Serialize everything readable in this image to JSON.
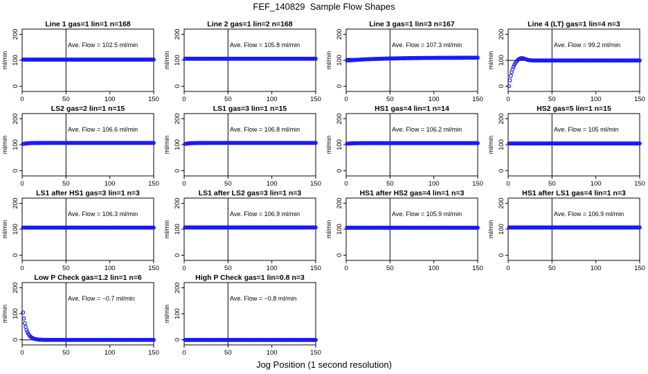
{
  "title": "FEF_140829  Sample Flow Shapes",
  "xlabel": "Jog Position (1 second resolution)",
  "chart_data": [
    {
      "type": "scatter",
      "title": "Line 1 gas=1 lin=1 n=168",
      "ylabel": "ml/min",
      "annotation": "Ave. Flow = 102.5  ml/min",
      "mean": 102.5,
      "xlim": [
        0,
        150
      ],
      "ylim": [
        -20,
        220
      ],
      "xticks": [
        0,
        50,
        100,
        150
      ],
      "yticks": [
        0,
        100,
        200
      ],
      "vline": 50,
      "point_color": "#1a1aff",
      "shape": {
        "start": 102.5,
        "end": 102.5,
        "tau": 1
      },
      "series": [
        {
          "x": [
            0,
            150
          ],
          "y": [
            102.5,
            102.5
          ]
        }
      ]
    },
    {
      "type": "scatter",
      "title": "Line 2 gas=1 lin=2 n=168",
      "ylabel": "ml/min",
      "annotation": "Ave. Flow = 105.8  ml/min",
      "mean": 105.8,
      "xlim": [
        0,
        150
      ],
      "ylim": [
        -20,
        220
      ],
      "xticks": [
        0,
        50,
        100,
        150
      ],
      "yticks": [
        0,
        100,
        200
      ],
      "vline": 50,
      "point_color": "#1a1aff",
      "shape": {
        "start": 105.8,
        "end": 105.8,
        "tau": 1
      },
      "series": [
        {
          "x": [
            0,
            150
          ],
          "y": [
            105.8,
            105.8
          ]
        }
      ]
    },
    {
      "type": "scatter",
      "title": "Line 3 gas=1 lin=3 n=167",
      "ylabel": "ml/min",
      "annotation": "Ave. Flow = 107.3  ml/min",
      "mean": 107.3,
      "xlim": [
        0,
        150
      ],
      "ylim": [
        -20,
        220
      ],
      "xticks": [
        0,
        50,
        100,
        150
      ],
      "yticks": [
        0,
        100,
        200
      ],
      "vline": 50,
      "point_color": "#1a1aff",
      "shape": {
        "start": 99,
        "end": 110,
        "tau": 40
      },
      "series": [
        {
          "x": [
            0,
            150
          ],
          "y": [
            99,
            110
          ]
        }
      ]
    },
    {
      "type": "scatter",
      "title": "Line 4 (LT) gas=1 lin=4 n=3",
      "ylabel": "ml/min",
      "annotation": "Ave. Flow = 99.2  ml/min",
      "mean": 99.2,
      "xlim": [
        0,
        150
      ],
      "ylim": [
        -20,
        220
      ],
      "xticks": [
        0,
        50,
        100,
        150
      ],
      "yticks": [
        0,
        100,
        200
      ],
      "vline": 50,
      "point_color": "#1a1aff",
      "shape": {
        "start": 0,
        "end": 99.2,
        "tau": 4,
        "overshoot": 12
      },
      "series": [
        {
          "x": [
            0,
            150
          ],
          "y": [
            0,
            99
          ]
        }
      ]
    },
    {
      "type": "scatter",
      "title": "LS2 gas=2 lin=1 n=15",
      "ylabel": "ml/min",
      "annotation": "Ave. Flow = 106.6  ml/min",
      "mean": 106.6,
      "xlim": [
        0,
        150
      ],
      "ylim": [
        -20,
        220
      ],
      "xticks": [
        0,
        50,
        100,
        150
      ],
      "yticks": [
        0,
        100,
        200
      ],
      "vline": 50,
      "point_color": "#1a1aff",
      "shape": {
        "start": 103,
        "end": 107,
        "tau": 5
      },
      "series": [
        {
          "x": [
            0,
            150
          ],
          "y": [
            103,
            107
          ]
        }
      ]
    },
    {
      "type": "scatter",
      "title": "LS1 gas=3 lin=1 n=15",
      "ylabel": "ml/min",
      "annotation": "Ave. Flow = 106.8  ml/min",
      "mean": 106.8,
      "xlim": [
        0,
        150
      ],
      "ylim": [
        -20,
        220
      ],
      "xticks": [
        0,
        50,
        100,
        150
      ],
      "yticks": [
        0,
        100,
        200
      ],
      "vline": 50,
      "point_color": "#1a1aff",
      "shape": {
        "start": 103,
        "end": 107,
        "tau": 5
      },
      "series": [
        {
          "x": [
            0,
            150
          ],
          "y": [
            103,
            107
          ]
        }
      ]
    },
    {
      "type": "scatter",
      "title": "HS1 gas=4 lin=1 n=14",
      "ylabel": "ml/min",
      "annotation": "Ave. Flow = 106.2  ml/min",
      "mean": 106.2,
      "xlim": [
        0,
        150
      ],
      "ylim": [
        -20,
        220
      ],
      "xticks": [
        0,
        50,
        100,
        150
      ],
      "yticks": [
        0,
        100,
        200
      ],
      "vline": 50,
      "point_color": "#1a1aff",
      "shape": {
        "start": 104,
        "end": 106.2,
        "tau": 5
      },
      "series": [
        {
          "x": [
            0,
            150
          ],
          "y": [
            104,
            106.2
          ]
        }
      ]
    },
    {
      "type": "scatter",
      "title": "HS2 gas=5 lin=1 n=15",
      "ylabel": "ml/min",
      "annotation": "Ave. Flow = 105  ml/min",
      "mean": 105,
      "xlim": [
        0,
        150
      ],
      "ylim": [
        -20,
        220
      ],
      "xticks": [
        0,
        50,
        100,
        150
      ],
      "yticks": [
        0,
        100,
        200
      ],
      "vline": 50,
      "point_color": "#1a1aff",
      "shape": {
        "start": 105,
        "end": 105,
        "tau": 1
      },
      "series": [
        {
          "x": [
            0,
            150
          ],
          "y": [
            105,
            105
          ]
        }
      ]
    },
    {
      "type": "scatter",
      "title": "LS1 after HS1 gas=3 lin=1 n=3",
      "ylabel": "ml/min",
      "annotation": "Ave. Flow = 106.3  ml/min",
      "mean": 106.3,
      "xlim": [
        0,
        150
      ],
      "ylim": [
        -20,
        220
      ],
      "xticks": [
        0,
        50,
        100,
        150
      ],
      "yticks": [
        0,
        100,
        200
      ],
      "vline": 50,
      "point_color": "#1a1aff",
      "shape": {
        "start": 106.3,
        "end": 106.3,
        "tau": 1
      },
      "series": [
        {
          "x": [
            0,
            150
          ],
          "y": [
            106.3,
            106.3
          ]
        }
      ]
    },
    {
      "type": "scatter",
      "title": "LS1 after LS2 gas=3 lin=1 n=3",
      "ylabel": "ml/min",
      "annotation": "Ave. Flow = 106.9  ml/min",
      "mean": 106.9,
      "xlim": [
        0,
        150
      ],
      "ylim": [
        -20,
        220
      ],
      "xticks": [
        0,
        50,
        100,
        150
      ],
      "yticks": [
        0,
        100,
        200
      ],
      "vline": 50,
      "point_color": "#1a1aff",
      "shape": {
        "start": 106.9,
        "end": 106.9,
        "tau": 1
      },
      "series": [
        {
          "x": [
            0,
            150
          ],
          "y": [
            106.9,
            106.9
          ]
        }
      ]
    },
    {
      "type": "scatter",
      "title": "HS1 after HS2 gas=4 lin=1 n=3",
      "ylabel": "ml/min",
      "annotation": "Ave. Flow = 105.9  ml/min",
      "mean": 105.9,
      "xlim": [
        0,
        150
      ],
      "ylim": [
        -20,
        220
      ],
      "xticks": [
        0,
        50,
        100,
        150
      ],
      "yticks": [
        0,
        100,
        200
      ],
      "vline": 50,
      "point_color": "#1a1aff",
      "shape": {
        "start": 105.9,
        "end": 105.9,
        "tau": 1
      },
      "series": [
        {
          "x": [
            0,
            150
          ],
          "y": [
            105.9,
            105.9
          ]
        }
      ]
    },
    {
      "type": "scatter",
      "title": "HS1 after LS1 gas=4 lin=1 n=3",
      "ylabel": "ml/min",
      "annotation": "Ave. Flow = 106.9  ml/min",
      "mean": 106.9,
      "xlim": [
        0,
        150
      ],
      "ylim": [
        -20,
        220
      ],
      "xticks": [
        0,
        50,
        100,
        150
      ],
      "yticks": [
        0,
        100,
        200
      ],
      "vline": 50,
      "point_color": "#1a1aff",
      "shape": {
        "start": 106.9,
        "end": 106.9,
        "tau": 1
      },
      "series": [
        {
          "x": [
            0,
            150
          ],
          "y": [
            106.9,
            106.9
          ]
        }
      ]
    },
    {
      "type": "scatter",
      "title": "Low P Check gas=1.2 lin=1 n=6",
      "ylabel": "ml/min",
      "annotation": "Ave. Flow = −0.7  ml/min",
      "mean": -0.7,
      "xlim": [
        0,
        150
      ],
      "ylim": [
        -20,
        220
      ],
      "xticks": [
        0,
        50,
        100,
        150
      ],
      "yticks": [
        0,
        100,
        200
      ],
      "vline": 50,
      "point_color": "#1a1aff",
      "shape": {
        "start": 105,
        "end": -0.7,
        "tau": 4
      },
      "series": [
        {
          "x": [
            0,
            150
          ],
          "y": [
            105,
            -0.7
          ]
        }
      ]
    },
    {
      "type": "scatter",
      "title": "High P Check gas=1 lin=0.8 n=3",
      "ylabel": "ml/min",
      "annotation": "Ave. Flow = −0.8  ml/min",
      "mean": -0.8,
      "xlim": [
        0,
        150
      ],
      "ylim": [
        -20,
        220
      ],
      "xticks": [
        0,
        50,
        100,
        150
      ],
      "yticks": [
        0,
        100,
        200
      ],
      "vline": 50,
      "point_color": "#1a1aff",
      "shape": {
        "start": -0.8,
        "end": -0.8,
        "tau": 1
      },
      "series": [
        {
          "x": [
            0,
            150
          ],
          "y": [
            -0.8,
            -0.8
          ]
        }
      ]
    }
  ]
}
